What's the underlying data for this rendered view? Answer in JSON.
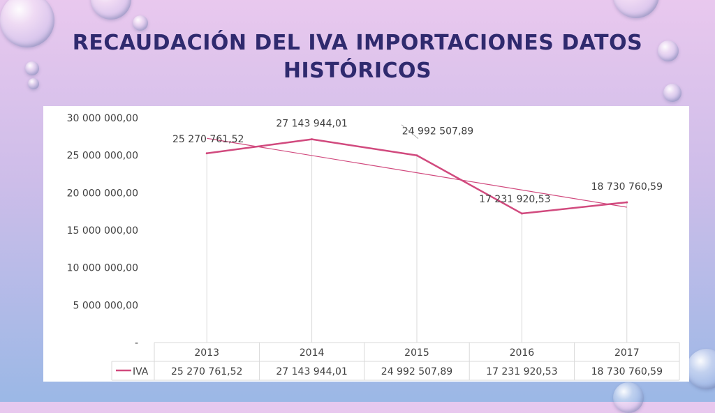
{
  "title": "RECAUDACIÓN DEL IVA IMPORTACIONES DATOS HISTÓRICOS",
  "chart_data": {
    "type": "line",
    "title": "RECAUDACIÓN DEL IVA IMPORTACIONES DATOS HISTÓRICOS",
    "categories": [
      "2013",
      "2014",
      "2015",
      "2016",
      "2017"
    ],
    "series": [
      {
        "name": "IVA",
        "values": [
          25270761.52,
          27143944.01,
          24992507.89,
          17231920.53,
          18730760.59
        ],
        "labels": [
          "25 270 761,52",
          "27 143 944,01",
          "24 992 507,89",
          "17 231 920,53",
          "18 730 760,59"
        ],
        "color": "#d14a7e"
      }
    ],
    "trendline": {
      "type": "linear",
      "color": "#d14a7e"
    },
    "yticks": [
      "-",
      "5 000 000,00",
      "10 000 000,00",
      "15 000 000,00",
      "20 000 000,00",
      "25 000 000,00",
      "30 000 000,00"
    ],
    "ylim": [
      0,
      30000000
    ],
    "grid": false,
    "legend": "data-table"
  }
}
